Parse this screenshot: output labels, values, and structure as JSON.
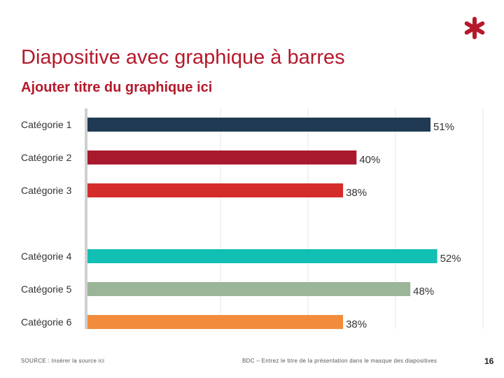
{
  "slide": {
    "title": "Diapositive avec graphique à barres",
    "page_number": "16",
    "source": "SOURCE : Insérer la source ici",
    "footer": "BDC – Entrez le titre de la présentation dans le masque des diapositives",
    "logo_icon": "asterisk-logo-icon",
    "accent_color": "#b5192b"
  },
  "chart_data": {
    "type": "bar",
    "orientation": "horizontal",
    "title": "Ajouter titre du graphique ici",
    "categories": [
      "Catégorie 1",
      "Catégorie 2",
      "Catégorie 3",
      "Catégorie 4",
      "Catégorie 5",
      "Catégorie 6"
    ],
    "values": [
      51,
      40,
      38,
      52,
      48,
      38
    ],
    "value_labels": [
      "51%",
      "40%",
      "38%",
      "52%",
      "48%",
      "38%"
    ],
    "colors": [
      "#1f3a52",
      "#a8192e",
      "#d62b2b",
      "#12bfb4",
      "#9ab597",
      "#f28c3c"
    ],
    "xlim": [
      0,
      60
    ],
    "xlabel": "",
    "ylabel": "",
    "grid": true
  }
}
